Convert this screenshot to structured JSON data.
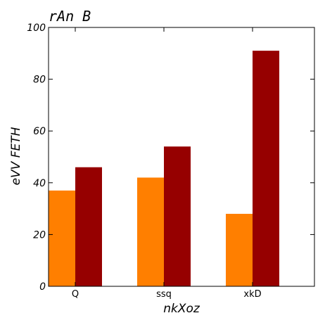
{
  "chart_data": {
    "type": "bar",
    "title": "rAn B",
    "xlabel": "nkXoz",
    "ylabel": "eVV FETH",
    "categories": [
      "Q",
      "ssq",
      "xkD"
    ],
    "series": [
      {
        "values": [
          37,
          42,
          28
        ],
        "color": "#ff7f00"
      },
      {
        "values": [
          46,
          54,
          91
        ],
        "color": "#960000"
      }
    ],
    "ylim": [
      0,
      100
    ],
    "yticks": [
      0,
      20,
      40,
      60,
      80,
      100
    ],
    "grid": false,
    "legend": "none"
  }
}
